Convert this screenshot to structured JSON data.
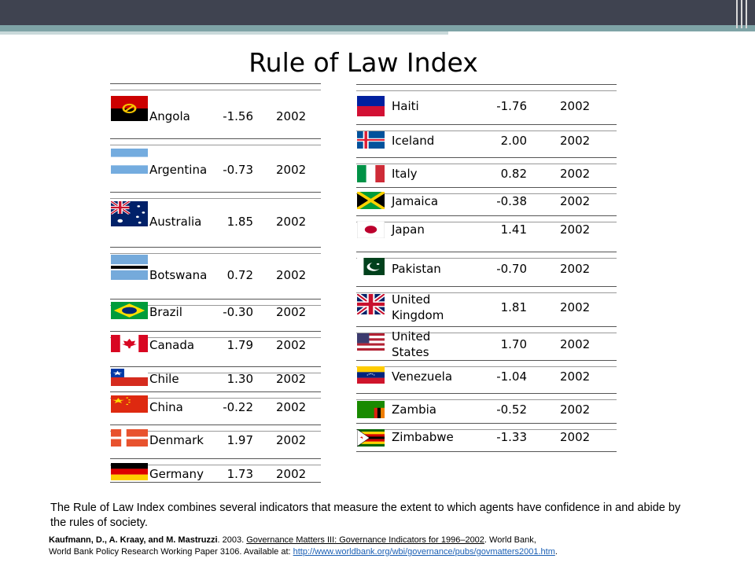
{
  "title": "Rule of Law Index",
  "left_table": [
    {
      "country": "Angola",
      "value": "-1.56",
      "year": "2002",
      "flag": "angola-flag"
    },
    {
      "country": "Argentina",
      "value": "-0.73",
      "year": "2002",
      "flag": "argentina-flag"
    },
    {
      "country": "Australia",
      "value": "1.85",
      "year": "2002",
      "flag": "australia-flag"
    },
    {
      "country": "Botswana",
      "value": "0.72",
      "year": "2002",
      "flag": "botswana-flag"
    },
    {
      "country": "Brazil",
      "value": "-0.30",
      "year": "2002",
      "flag": "brazil-flag"
    },
    {
      "country": "Canada",
      "value": "1.79",
      "year": "2002",
      "flag": "canada-flag"
    },
    {
      "country": "Chile",
      "value": "1.30",
      "year": "2002",
      "flag": "chile-flag"
    },
    {
      "country": "China",
      "value": "-0.22",
      "year": "2002",
      "flag": "china-flag"
    },
    {
      "country": "Denmark",
      "value": "1.97",
      "year": "2002",
      "flag": "denmark-flag"
    },
    {
      "country": "Germany",
      "value": "1.73",
      "year": "2002",
      "flag": "germany-flag"
    }
  ],
  "right_table": [
    {
      "country": "Haiti",
      "value": "-1.76",
      "year": "2002",
      "flag": "haiti-flag"
    },
    {
      "country": "Iceland",
      "value": "2.00",
      "year": "2002",
      "flag": "iceland-flag"
    },
    {
      "country": "Italy",
      "value": "0.82",
      "year": "2002",
      "flag": "italy-flag"
    },
    {
      "country": "Jamaica",
      "value": "-0.38",
      "year": "2002",
      "flag": "jamaica-flag"
    },
    {
      "country": "Japan",
      "value": "1.41",
      "year": "2002",
      "flag": "japan-flag"
    },
    {
      "country": "Pakistan",
      "value": "-0.70",
      "year": "2002",
      "flag": "pakistan-flag"
    },
    {
      "country": "United Kingdom",
      "country_line1": "United",
      "country_line2": "Kingdom",
      "value": "1.81",
      "year": "2002",
      "flag": "united-kingdom-flag"
    },
    {
      "country": "United States",
      "country_line1": "United",
      "country_line2": "States",
      "value": "1.70",
      "year": "2002",
      "flag": "united-states-flag"
    },
    {
      "country": "Venezuela",
      "value": "-1.04",
      "year": "2002",
      "flag": "venezuela-flag"
    },
    {
      "country": "Zambia",
      "value": "-0.52",
      "year": "2002",
      "flag": "zambia-flag"
    },
    {
      "country": "Zimbabwe",
      "value": "-1.33",
      "year": "2002",
      "flag": "zimbabwe-flag"
    }
  ],
  "description": "The Rule of Law Index combines several indicators that measure  the extent to which agents have confidence in and abide by the rules of society.",
  "citation": {
    "authors": "Kaufmann, D., A. Kraay, and M. Mastruzzi",
    "year_text": ". 2003. ",
    "title": "Governance Matters III: Governance Indicators for 1996–2002",
    "publisher": ". World Bank,",
    "series": "World Bank Policy Research Working Paper 3106. Available at: ",
    "url": "http://www.worldbank.org/wbi/governance/pubs/govmatters2001.htm",
    "end": "."
  }
}
